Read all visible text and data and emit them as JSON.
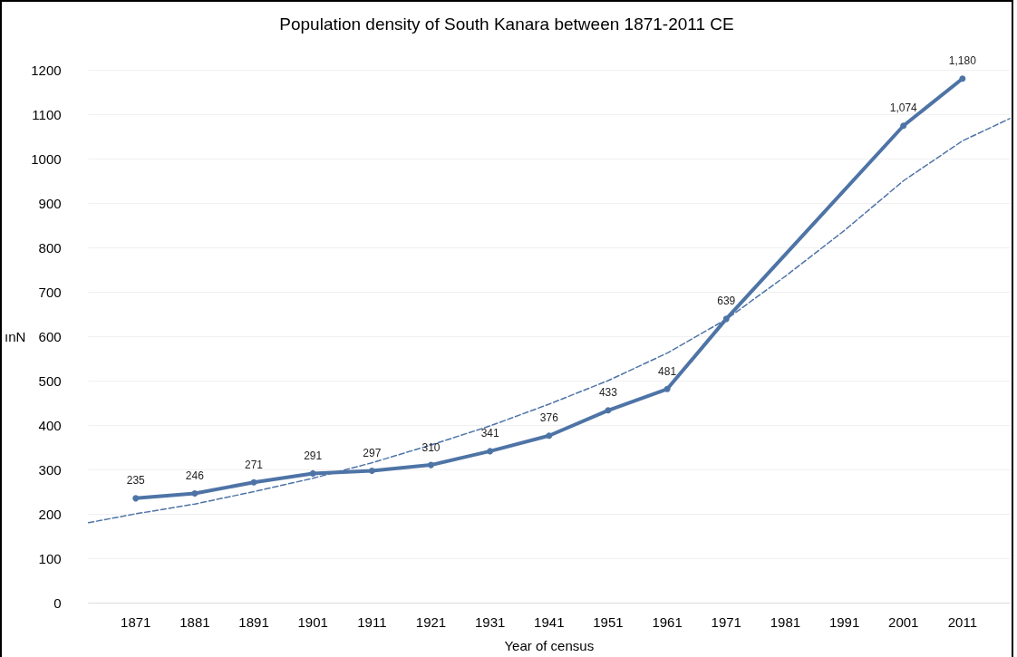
{
  "chart_data": {
    "type": "line",
    "title": "Population density of South Kanara between 1871-2011 CE",
    "xlabel": "Year of census",
    "ylabel": "ınN",
    "xlim": [
      1863,
      2019
    ],
    "xticks": [
      1871,
      1881,
      1891,
      1901,
      1911,
      1921,
      1931,
      1941,
      1951,
      1961,
      1971,
      1981,
      1991,
      2001,
      2011
    ],
    "ylim": [
      0,
      1200
    ],
    "yticks": [
      0,
      100,
      200,
      300,
      400,
      500,
      600,
      700,
      800,
      900,
      1000,
      1100,
      1200
    ],
    "grid": "y",
    "series": [
      {
        "color": "#4e74a6",
        "marker": "circle",
        "line_style": "solid",
        "x": [
          1871,
          1881,
          1891,
          1901,
          1911,
          1921,
          1931,
          1941,
          1951,
          1961,
          1971,
          2001,
          2011
        ],
        "values": [
          235,
          246,
          271,
          291,
          297,
          310,
          341,
          376,
          433,
          481,
          639,
          1074,
          1180
        ],
        "value_labels": [
          "235",
          "246",
          "271",
          "291",
          "297",
          "310",
          "341",
          "376",
          "433",
          "481",
          "639",
          "1,074",
          "1,180"
        ]
      },
      {
        "type": "line",
        "color": "#4e74a6",
        "marker": "none",
        "line_style": "dashed",
        "x": [
          1863,
          1871,
          1881,
          1891,
          1901,
          1911,
          1921,
          1931,
          1941,
          1951,
          1961,
          1971,
          1981,
          1991,
          2001,
          2011,
          2019
        ],
        "values": [
          180,
          200,
          222,
          250,
          280,
          315,
          355,
          398,
          447,
          500,
          562,
          638,
          735,
          838,
          950,
          1040,
          1090
        ]
      }
    ]
  }
}
